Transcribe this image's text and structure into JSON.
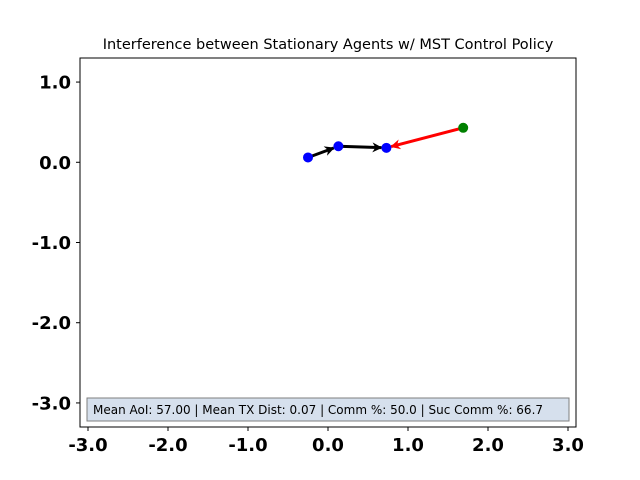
{
  "chart_data": {
    "type": "scatter",
    "title": "Interference between Stationary Agents w/ MST Control Policy",
    "xlabel": "",
    "ylabel": "",
    "xlim": [
      -3.1,
      3.1
    ],
    "ylim": [
      -3.3,
      1.3
    ],
    "x_ticks": [
      -3.0,
      -2.0,
      -1.0,
      0.0,
      1.0,
      2.0,
      3.0
    ],
    "x_tick_labels": [
      "-3.0",
      "-2.0",
      "-1.0",
      "0.0",
      "1.0",
      "2.0",
      "3.0"
    ],
    "y_ticks": [
      1.0,
      0.0,
      -1.0,
      -2.0,
      -3.0
    ],
    "y_tick_labels": [
      "1.0",
      "0.0",
      "-1.0",
      "-2.0",
      "-3.0"
    ],
    "grid": false,
    "legend": "none",
    "series": [
      {
        "color": "#0000ff",
        "points": [
          {
            "x": -0.25,
            "y": 0.06
          },
          {
            "x": 0.13,
            "y": 0.2
          },
          {
            "x": 0.73,
            "y": 0.18
          }
        ]
      },
      {
        "color": "#008000",
        "points": [
          {
            "x": 1.69,
            "y": 0.43
          }
        ]
      }
    ],
    "arrows": [
      {
        "from": [
          -0.25,
          0.06
        ],
        "to": [
          0.13,
          0.2
        ],
        "color": "#000000"
      },
      {
        "from": [
          0.13,
          0.2
        ],
        "to": [
          0.73,
          0.18
        ],
        "color": "#000000"
      },
      {
        "from": [
          1.69,
          0.43
        ],
        "to": [
          0.73,
          0.18
        ],
        "color": "#ff0000"
      }
    ],
    "annotation": "Mean AoI: 57.00 | Mean TX Dist: 0.07 | Comm %: 50.0 | Suc Comm %: 66.7"
  }
}
